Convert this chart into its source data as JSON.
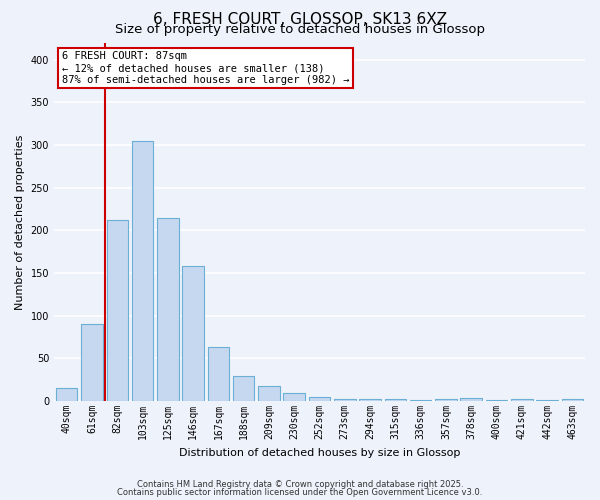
{
  "title": "6, FRESH COURT, GLOSSOP, SK13 6XZ",
  "subtitle": "Size of property relative to detached houses in Glossop",
  "xlabel": "Distribution of detached houses by size in Glossop",
  "ylabel": "Number of detached properties",
  "categories": [
    "40sqm",
    "61sqm",
    "82sqm",
    "103sqm",
    "125sqm",
    "146sqm",
    "167sqm",
    "188sqm",
    "209sqm",
    "230sqm",
    "252sqm",
    "273sqm",
    "294sqm",
    "315sqm",
    "336sqm",
    "357sqm",
    "378sqm",
    "400sqm",
    "421sqm",
    "442sqm",
    "463sqm"
  ],
  "values": [
    15,
    90,
    212,
    305,
    215,
    158,
    63,
    30,
    18,
    10,
    5,
    2,
    2,
    3,
    1,
    2,
    4,
    1,
    2,
    1,
    3
  ],
  "bar_color": "#c5d8f0",
  "bar_edge_color": "#6baed6",
  "red_line_x": 1.5,
  "ylim": [
    0,
    420
  ],
  "yticks": [
    0,
    50,
    100,
    150,
    200,
    250,
    300,
    350,
    400
  ],
  "annotation_text": "6 FRESH COURT: 87sqm\n← 12% of detached houses are smaller (138)\n87% of semi-detached houses are larger (982) →",
  "annotation_box_color": "#ffffff",
  "annotation_box_edge": "#cc0000",
  "footer_line1": "Contains HM Land Registry data © Crown copyright and database right 2025.",
  "footer_line2": "Contains public sector information licensed under the Open Government Licence v3.0.",
  "background_color": "#eef2fb",
  "grid_color": "#ffffff",
  "title_fontsize": 11,
  "subtitle_fontsize": 9.5,
  "axis_label_fontsize": 8,
  "tick_fontsize": 7,
  "footer_fontsize": 6,
  "annotation_fontsize": 7.5
}
